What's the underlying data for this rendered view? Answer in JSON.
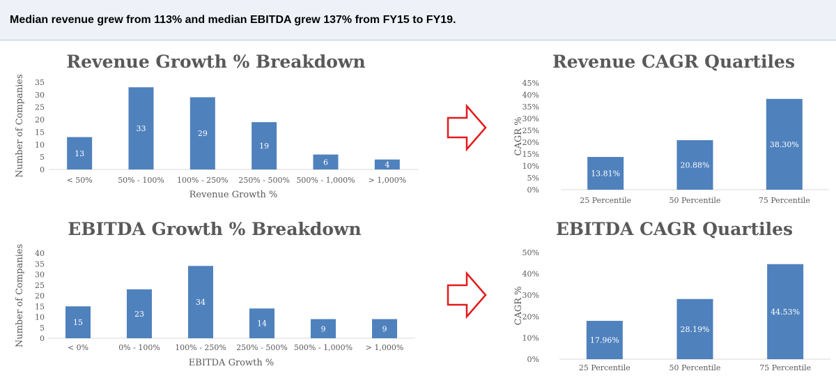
{
  "banner": {
    "text": "Median revenue grew from 113% and median EBITDA grew 137% from FY15 to FY19."
  },
  "colors": {
    "bar": "#4f81bd",
    "axis": "#d9d9d9",
    "text": "#595959",
    "arrow": "#e31a1c"
  },
  "icons": [
    "right-arrow-icon",
    "right-arrow-icon"
  ],
  "chart_data": [
    {
      "id": "revenue-growth",
      "type": "bar",
      "title": "Revenue Growth % Breakdown",
      "xlabel": "Revenue Growth %",
      "ylabel": "Number of Companies",
      "categories": [
        "< 50%",
        "50% - 100%",
        "100% - 250%",
        "250% - 500%",
        "500% - 1,000%",
        "> 1,000%"
      ],
      "values": [
        13,
        33,
        29,
        19,
        6,
        4
      ],
      "data_labels": [
        "13",
        "33",
        "29",
        "19",
        "6",
        "4"
      ],
      "ylim": [
        0,
        35
      ],
      "yticks": [
        0,
        5,
        10,
        15,
        20,
        25,
        30,
        35
      ],
      "ytick_labels": [
        "0",
        "5",
        "10",
        "15",
        "20",
        "25",
        "30",
        "35"
      ],
      "grid": false,
      "legend": "none"
    },
    {
      "id": "revenue-cagr",
      "type": "bar",
      "title": "Revenue CAGR Quartiles",
      "xlabel": "",
      "ylabel": "CAGR %",
      "categories": [
        "25 Percentile",
        "50 Percentile",
        "75 Percentile"
      ],
      "values": [
        13.81,
        20.88,
        38.3
      ],
      "data_labels": [
        "13.81%",
        "20.88%",
        "38.30%"
      ],
      "ylim": [
        0,
        45
      ],
      "yticks": [
        0,
        5,
        10,
        15,
        20,
        25,
        30,
        35,
        40,
        45
      ],
      "ytick_labels": [
        "0%",
        "5%",
        "10%",
        "15%",
        "20%",
        "25%",
        "30%",
        "35%",
        "40%",
        "45%"
      ],
      "grid": false,
      "legend": "none"
    },
    {
      "id": "ebitda-growth",
      "type": "bar",
      "title": "EBITDA Growth % Breakdown",
      "xlabel": "EBITDA Growth %",
      "ylabel": "Number of Companies",
      "categories": [
        "< 0%",
        "0% - 100%",
        "100% - 250%",
        "250% - 500%",
        "500% - 1,000%",
        "> 1,000%"
      ],
      "values": [
        15,
        23,
        34,
        14,
        9,
        9
      ],
      "data_labels": [
        "15",
        "23",
        "34",
        "14",
        "9",
        "9"
      ],
      "ylim": [
        0,
        40
      ],
      "yticks": [
        0,
        5,
        10,
        15,
        20,
        25,
        30,
        35,
        40
      ],
      "ytick_labels": [
        "0",
        "5",
        "10",
        "15",
        "20",
        "25",
        "30",
        "35",
        "40"
      ],
      "grid": false,
      "legend": "none"
    },
    {
      "id": "ebitda-cagr",
      "type": "bar",
      "title": "EBITDA CAGR Quartiles",
      "xlabel": "",
      "ylabel": "CAGR %",
      "categories": [
        "25 Percentile",
        "50 Percentile",
        "75 Percentile"
      ],
      "values": [
        17.96,
        28.19,
        44.53
      ],
      "data_labels": [
        "17.96%",
        "28.19%",
        "44.53%"
      ],
      "ylim": [
        0,
        50
      ],
      "yticks": [
        0,
        10,
        20,
        30,
        40,
        50
      ],
      "ytick_labels": [
        "0%",
        "10%",
        "20%",
        "30%",
        "40%",
        "50%"
      ],
      "grid": false,
      "legend": "none"
    }
  ]
}
